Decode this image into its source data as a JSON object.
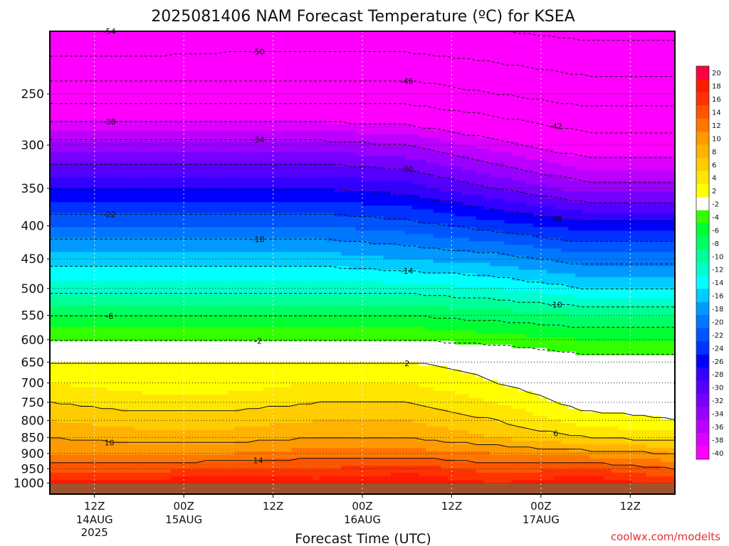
{
  "chart_data": {
    "type": "heatmap",
    "title": "2025081406 NAM Forecast Temperature (ºC) for KSEA",
    "xlabel": "Forecast Time (UTC)",
    "ylabel": "",
    "y_axis_unit": "hPa",
    "y_scale": "log",
    "ylim": [
      1040,
      200
    ],
    "xlim_hours": [
      0,
      84
    ],
    "y_ticks": [
      "250",
      "300",
      "350",
      "400",
      "450",
      "500",
      "550",
      "600",
      "650",
      "700",
      "750",
      "800",
      "850",
      "900",
      "950",
      "1000"
    ],
    "x_ticks": [
      {
        "label": "12Z",
        "sub1": "14AUG",
        "sub2": "2025"
      },
      {
        "label": "00Z",
        "sub1": "15AUG",
        "sub2": ""
      },
      {
        "label": "12Z",
        "sub1": "",
        "sub2": ""
      },
      {
        "label": "00Z",
        "sub1": "16AUG",
        "sub2": ""
      },
      {
        "label": "12Z",
        "sub1": "",
        "sub2": ""
      },
      {
        "label": "00Z",
        "sub1": "17AUG",
        "sub2": ""
      },
      {
        "label": "12Z",
        "sub1": "",
        "sub2": ""
      }
    ],
    "x_tick_hours": [
      6,
      18,
      30,
      42,
      54,
      66,
      78
    ],
    "temperature_profile": {
      "pressure_levels": [
        1000,
        950,
        900,
        850,
        800,
        750,
        700,
        650,
        600,
        550,
        500,
        450,
        400,
        350,
        300,
        250,
        200
      ],
      "times_hours": [
        0,
        12,
        24,
        36,
        48,
        60,
        72,
        84
      ],
      "temperature_c": [
        [
          19,
          19,
          20,
          19,
          20,
          18,
          20,
          17
        ],
        [
          15,
          15,
          16,
          16,
          17,
          15,
          16,
          14
        ],
        [
          12,
          12,
          12,
          13,
          13,
          12,
          11,
          10
        ],
        [
          10,
          9,
          9,
          10,
          10,
          8,
          6,
          5
        ],
        [
          8,
          7,
          7,
          8,
          8,
          6,
          3,
          2
        ],
        [
          6,
          5,
          5,
          6,
          6,
          4,
          1,
          1
        ],
        [
          4,
          3,
          3,
          4,
          4,
          2,
          0,
          0
        ],
        [
          2,
          2,
          2,
          2,
          2,
          1,
          -1,
          -1
        ],
        [
          -2,
          -2,
          -2,
          -2,
          -2,
          -3,
          -4,
          -4
        ],
        [
          -6,
          -6,
          -6,
          -6,
          -6,
          -7,
          -8,
          -8
        ],
        [
          -11,
          -11,
          -11,
          -11,
          -11,
          -12,
          -14,
          -14
        ],
        [
          -15,
          -15,
          -15,
          -15,
          -16,
          -17,
          -19,
          -19
        ],
        [
          -20,
          -20,
          -20,
          -20,
          -21,
          -23,
          -25,
          -25
        ],
        [
          -26,
          -26,
          -26,
          -26,
          -27,
          -30,
          -33,
          -33
        ],
        [
          -33,
          -33,
          -33,
          -33,
          -34,
          -37,
          -40,
          -40
        ],
        [
          -44,
          -44,
          -44,
          -44,
          -44,
          -46,
          -48,
          -48
        ],
        [
          -54,
          -54,
          -53,
          -53,
          -53,
          -54,
          -55,
          -55
        ]
      ]
    },
    "contour_labels": [
      "-54",
      "-50",
      "-46",
      "-42",
      "-38",
      "-34",
      "-30",
      "-26",
      "-22",
      "-18",
      "-14",
      "-10",
      "-6",
      "-2",
      "2",
      "6",
      "10",
      "14"
    ],
    "colorbar": {
      "labels": [
        "20",
        "18",
        "16",
        "14",
        "12",
        "10",
        "8",
        "6",
        "4",
        "2",
        "-2",
        "-4",
        "-6",
        "-8",
        "-10",
        "-12",
        "-14",
        "-16",
        "-18",
        "-20",
        "-22",
        "-24",
        "-26",
        "-28",
        "-30",
        "-32",
        "-34",
        "-36",
        "-38",
        "-40"
      ],
      "colors": [
        "#ff0040",
        "#ff1a00",
        "#ff3300",
        "#ff5500",
        "#ff7700",
        "#ff9900",
        "#ffb300",
        "#ffcc00",
        "#ffe600",
        "#ffff00",
        "#ffffff",
        "#33ff00",
        "#00ff33",
        "#00ff66",
        "#00ff99",
        "#00ffcc",
        "#00ffff",
        "#00ccff",
        "#0099ff",
        "#0077ff",
        "#0055ff",
        "#0033ff",
        "#0000ff",
        "#3300ff",
        "#5500ff",
        "#7700ff",
        "#9900ff",
        "#bb00ff",
        "#dd00ff",
        "#ff00ff"
      ]
    },
    "grid": true,
    "surface_color": "#a0522d",
    "credit": "coolwx.com/modelts"
  }
}
